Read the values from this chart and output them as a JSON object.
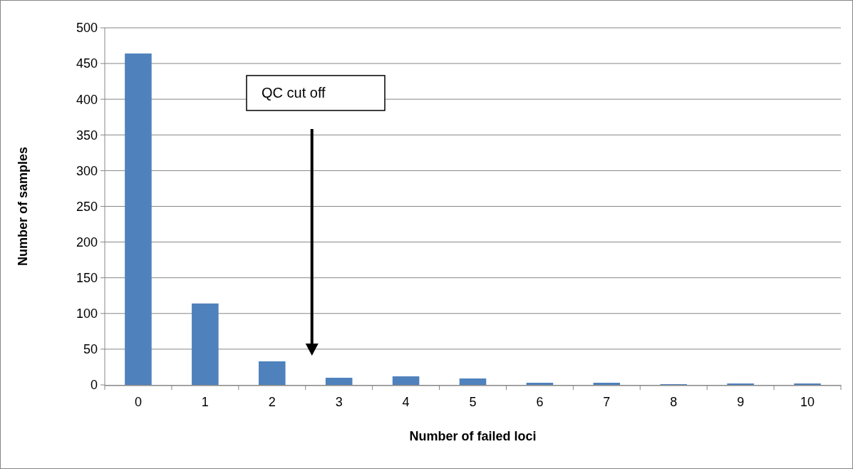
{
  "chart_data": {
    "type": "bar",
    "xlabel": "Number of failed loci",
    "ylabel": "Number of samples",
    "categories": [
      "0",
      "1",
      "2",
      "3",
      "4",
      "5",
      "6",
      "7",
      "8",
      "9",
      "10"
    ],
    "values": [
      464,
      114,
      33,
      10,
      12,
      9,
      3,
      3,
      1,
      2,
      2
    ],
    "color": "#4f81bd",
    "ylim": [
      0,
      500
    ],
    "yticks": [
      0,
      50,
      100,
      150,
      200,
      250,
      300,
      350,
      400,
      450,
      500
    ],
    "grid": "y",
    "annotations": [
      "QC cut off"
    ]
  }
}
